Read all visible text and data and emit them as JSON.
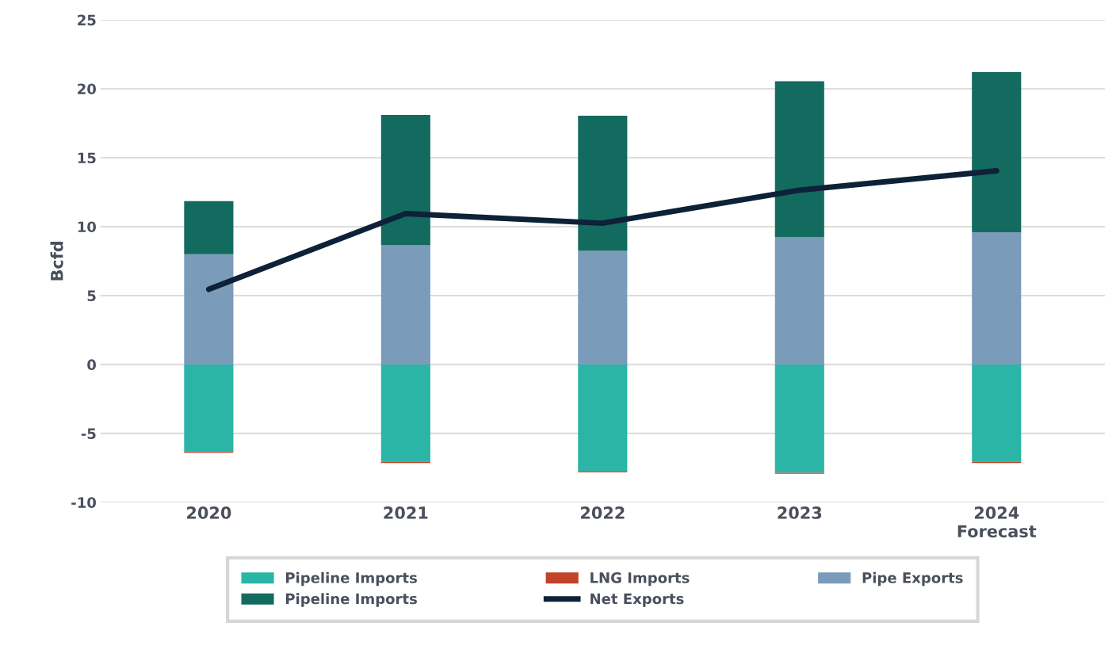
{
  "chart_data": {
    "type": "bar",
    "stacked": true,
    "ylabel": "Bcfd",
    "categories": [
      "2020",
      "2021",
      "2022",
      "2023",
      "2024\nForecast"
    ],
    "series": [
      {
        "name": "Pipeline Imports",
        "color": "#2ab5a6",
        "values": [
          -6.3,
          -7.05,
          -7.75,
          -7.85,
          -7.05
        ]
      },
      {
        "name": "LNG Imports",
        "color": "#c0432a",
        "values": [
          -0.1,
          -0.1,
          -0.08,
          -0.08,
          -0.1
        ]
      },
      {
        "name": "Pipe Exports",
        "color": "#7a9cba",
        "values": [
          8.0,
          8.65,
          8.25,
          9.25,
          9.6
        ]
      },
      {
        "name": "Pipeline Imports",
        "color": "#136b60",
        "values": [
          3.85,
          9.45,
          9.8,
          11.3,
          11.6
        ]
      },
      {
        "name": "Net Exports",
        "color": "#0d2138",
        "type": "line",
        "values": [
          5.45,
          10.95,
          10.25,
          12.65,
          14.05
        ]
      }
    ],
    "ylim": [
      -10,
      25
    ],
    "yticks": [
      -10,
      -5,
      0,
      5,
      10,
      15,
      20,
      25
    ],
    "grid": "y",
    "legend": "bottom"
  }
}
